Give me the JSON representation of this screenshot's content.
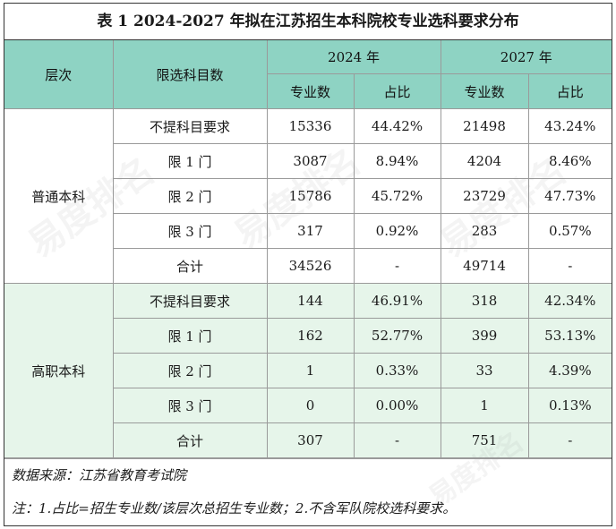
{
  "title": "表 1  2024-2027 年拟在江苏招生本科院校专业选科要求分布",
  "header": {
    "level": "层次",
    "subjects": "限选科目数",
    "year1": "2024 年",
    "year2": "2027 年",
    "count": "专业数",
    "ratio": "占比"
  },
  "groups": [
    {
      "level": "普通本科",
      "rows": [
        {
          "label": "不提科目要求",
          "c1": "15336",
          "r1": "44.42%",
          "c2": "21498",
          "r2": "43.24%"
        },
        {
          "label": "限 1 门",
          "c1": "3087",
          "r1": "8.94%",
          "c2": "4204",
          "r2": "8.46%"
        },
        {
          "label": "限 2 门",
          "c1": "15786",
          "r1": "45.72%",
          "c2": "23729",
          "r2": "47.73%"
        },
        {
          "label": "限 3 门",
          "c1": "317",
          "r1": "0.92%",
          "c2": "283",
          "r2": "0.57%"
        },
        {
          "label": "合计",
          "c1": "34526",
          "r1": "-",
          "c2": "49714",
          "r2": "-"
        }
      ]
    },
    {
      "level": "高职本科",
      "rows": [
        {
          "label": "不提科目要求",
          "c1": "144",
          "r1": "46.91%",
          "c2": "318",
          "r2": "42.34%"
        },
        {
          "label": "限 1 门",
          "c1": "162",
          "r1": "52.77%",
          "c2": "399",
          "r2": "53.13%"
        },
        {
          "label": "限 2 门",
          "c1": "1",
          "r1": "0.33%",
          "c2": "33",
          "r2": "4.39%"
        },
        {
          "label": "限 3 门",
          "c1": "0",
          "r1": "0.00%",
          "c2": "1",
          "r2": "0.13%"
        },
        {
          "label": "合计",
          "c1": "307",
          "r1": "-",
          "c2": "751",
          "r2": "-"
        }
      ]
    }
  ],
  "notes": {
    "source": "数据来源：江苏省教育考试院",
    "note": "注：1.占比=招生专业数/该层次总招生专业数；2.不含军队院校选科要求。"
  },
  "watermark": {
    "text": "易度排名",
    "sub": "EDU Ranking"
  },
  "colors": {
    "header_bg": "#8ed3c3",
    "group2_bg": "#e6f5ea"
  }
}
